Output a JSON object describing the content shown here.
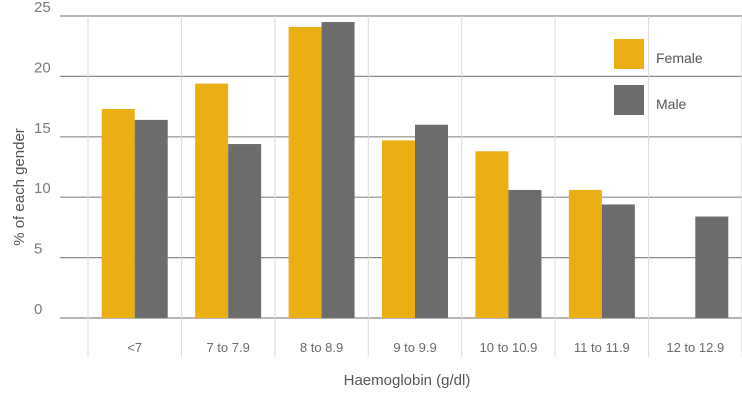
{
  "chart_data": {
    "type": "bar",
    "xlabel": "Haemoglobin (g/dl)",
    "ylabel": "% of each gender",
    "ylim": [
      0,
      25
    ],
    "yticks": [
      0,
      5,
      10,
      15,
      20,
      25
    ],
    "categories": [
      "<7",
      "7 to 7.9",
      "8 to 8.9",
      "9 to 9.9",
      "10 to 10.9",
      "11 to 11.9",
      "12 to 12.9"
    ],
    "series": [
      {
        "name": "Female",
        "color": "#ebaf13",
        "values": [
          17.3,
          19.4,
          24.1,
          14.7,
          13.8,
          10.6,
          0
        ]
      },
      {
        "name": "Male",
        "color": "#6c6c6c",
        "values": [
          16.4,
          14.4,
          24.5,
          16.0,
          10.6,
          9.4,
          8.4
        ]
      }
    ],
    "grid": true,
    "legend_position": "top-right"
  }
}
